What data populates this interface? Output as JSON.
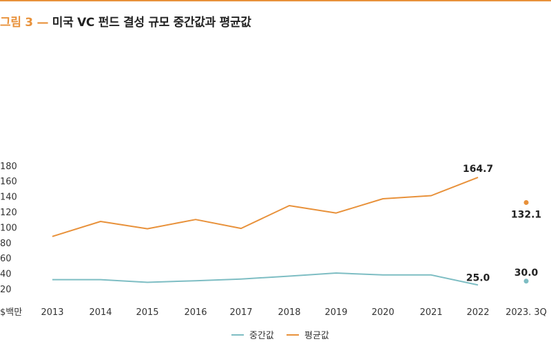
{
  "figure": {
    "title_prefix": "그림 3 —",
    "title_main": "미국 VC 펀드 결성 규모 중간값과 평균값"
  },
  "colors": {
    "median": "#7dbdc3",
    "mean": "#e8913a",
    "accent": "#e8913a"
  },
  "chart_data": {
    "type": "line",
    "title": "미국 VC 펀드 결성 규모 중간값과 평균값",
    "ylabel": "$백만",
    "ylim": [
      20,
      180
    ],
    "yticks": [
      20,
      40,
      60,
      80,
      100,
      120,
      140,
      160,
      180
    ],
    "categories": [
      "2013",
      "2014",
      "2015",
      "2016",
      "2017",
      "2018",
      "2019",
      "2020",
      "2021",
      "2022",
      "2023. 3Q"
    ],
    "series": [
      {
        "name": "중간값",
        "color": "#7dbdc3",
        "values": [
          32.0,
          32.0,
          28.5,
          30.5,
          32.8,
          36.5,
          40.5,
          38.0,
          38.0,
          25.0,
          30.0
        ],
        "labels": {
          "9": "25.0",
          "10": "30.0"
        }
      },
      {
        "name": "평균값",
        "color": "#e8913a",
        "values": [
          88.0,
          107.5,
          98.0,
          110.0,
          98.5,
          128.0,
          118.5,
          137.0,
          141.0,
          164.7,
          132.1
        ],
        "labels": {
          "9": "164.7",
          "10": "132.1"
        }
      }
    ],
    "separate_last_point": true,
    "grid": false,
    "legend_position": "bottom"
  }
}
